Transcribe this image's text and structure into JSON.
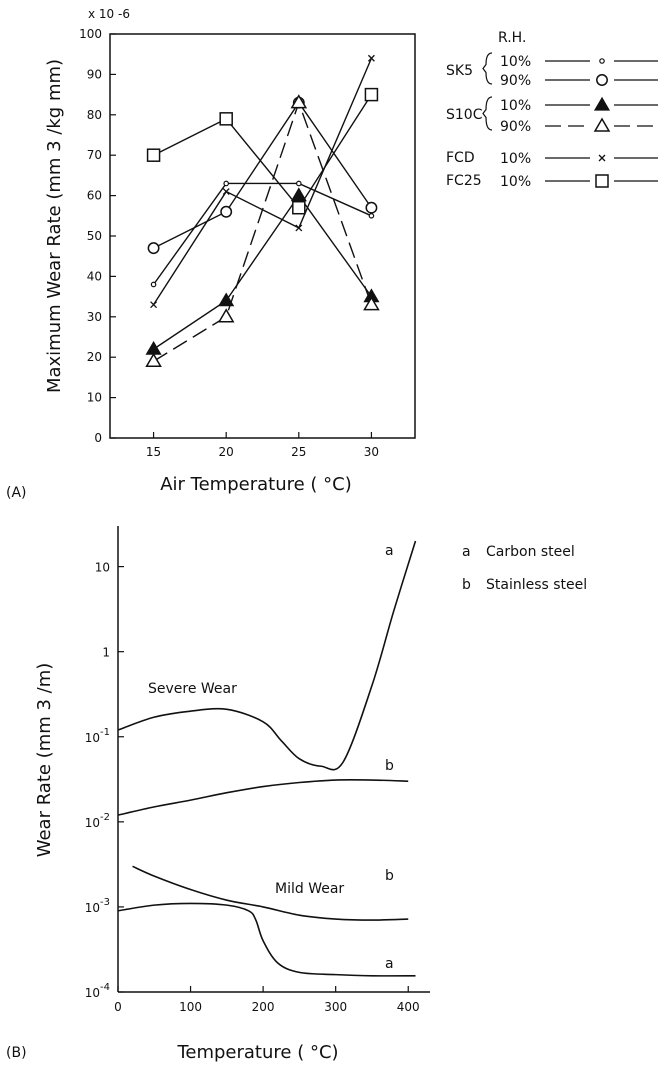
{
  "chart_data": [
    {
      "panel_label": "(A)",
      "type": "line",
      "xlabel": "Air Temperature ( °C)",
      "ylabel": "Maximum Wear Rate (mm 3 /kg mm)",
      "y_multiplier": "x 10 -6",
      "xlim": [
        12,
        33
      ],
      "ylim": [
        0,
        100
      ],
      "x_ticks": [
        15,
        20,
        25,
        30
      ],
      "y_ticks": [
        0,
        10,
        20,
        30,
        40,
        50,
        60,
        70,
        80,
        90,
        100
      ],
      "legend_header": "R.H.",
      "legend_groups": [
        {
          "label": "SK5",
          "entries": [
            "10%",
            "90%"
          ]
        },
        {
          "label": "S10C",
          "entries": [
            "10%",
            "90%"
          ]
        },
        {
          "label": "FCD",
          "entries": [
            "10%"
          ]
        },
        {
          "label": "FC25",
          "entries": [
            "10%"
          ]
        }
      ],
      "series": [
        {
          "name": "SK5 10%",
          "marker": "small-circle",
          "dash": "solid",
          "x": [
            15,
            20,
            25,
            30
          ],
          "y": [
            38,
            63,
            63,
            55
          ]
        },
        {
          "name": "SK5 90%",
          "marker": "circle",
          "dash": "solid",
          "x": [
            15,
            20,
            25,
            30
          ],
          "y": [
            47,
            56,
            83,
            57
          ]
        },
        {
          "name": "S10C 10%",
          "marker": "filled-triangle",
          "dash": "solid",
          "x": [
            15,
            20,
            25,
            30
          ],
          "y": [
            22,
            34,
            60,
            35
          ]
        },
        {
          "name": "S10C 90%",
          "marker": "triangle",
          "dash": "dashed",
          "x": [
            15,
            20,
            25,
            30
          ],
          "y": [
            19,
            30,
            83,
            33
          ]
        },
        {
          "name": "FCD 10%",
          "marker": "x",
          "dash": "solid",
          "x": [
            15,
            20,
            25,
            30
          ],
          "y": [
            33,
            61,
            52,
            94
          ]
        },
        {
          "name": "FC25 10%",
          "marker": "square",
          "dash": "solid",
          "x": [
            15,
            20,
            25,
            30
          ],
          "y": [
            70,
            79,
            57,
            85
          ]
        }
      ]
    },
    {
      "panel_label": "(B)",
      "type": "line",
      "xlabel": "Temperature ( °C)",
      "ylabel": "Wear Rate (mm 3 /m)",
      "xlim": [
        0,
        430
      ],
      "ylim": [
        0.0001,
        30
      ],
      "y_scale": "log",
      "x_ticks": [
        0,
        100,
        200,
        300,
        400
      ],
      "y_ticks": [
        "10-4",
        "10-3",
        "10-2",
        "10-1",
        "1",
        "10"
      ],
      "legend": [
        {
          "key": "a",
          "text": "Carbon steel"
        },
        {
          "key": "b",
          "text": "Stainless steel"
        }
      ],
      "annotations": [
        "Severe Wear",
        "Mild Wear"
      ],
      "series": [
        {
          "name": "Severe a",
          "end_label": "a",
          "x": [
            0,
            50,
            100,
            150,
            200,
            225,
            250,
            280,
            310,
            350,
            380,
            410
          ],
          "y": [
            0.12,
            0.17,
            0.2,
            0.21,
            0.15,
            0.09,
            0.055,
            0.045,
            0.05,
            0.4,
            3,
            20
          ]
        },
        {
          "name": "Severe b",
          "end_label": "b",
          "x": [
            0,
            50,
            100,
            150,
            200,
            250,
            300,
            350,
            400
          ],
          "y": [
            0.012,
            0.015,
            0.018,
            0.022,
            0.026,
            0.029,
            0.031,
            0.031,
            0.03
          ]
        },
        {
          "name": "Mild b",
          "end_label": "b",
          "x": [
            20,
            50,
            100,
            150,
            200,
            250,
            300,
            350,
            400
          ],
          "y": [
            0.003,
            0.0023,
            0.0016,
            0.0012,
            0.001,
            0.0008,
            0.00072,
            0.0007,
            0.00072
          ]
        },
        {
          "name": "Mild a",
          "end_label": "a",
          "x": [
            0,
            50,
            100,
            150,
            180,
            190,
            200,
            220,
            250,
            300,
            350,
            410
          ],
          "y": [
            0.0009,
            0.00105,
            0.0011,
            0.00105,
            0.0009,
            0.0007,
            0.0004,
            0.00022,
            0.00017,
            0.00016,
            0.000155,
            0.000155
          ]
        }
      ]
    }
  ]
}
